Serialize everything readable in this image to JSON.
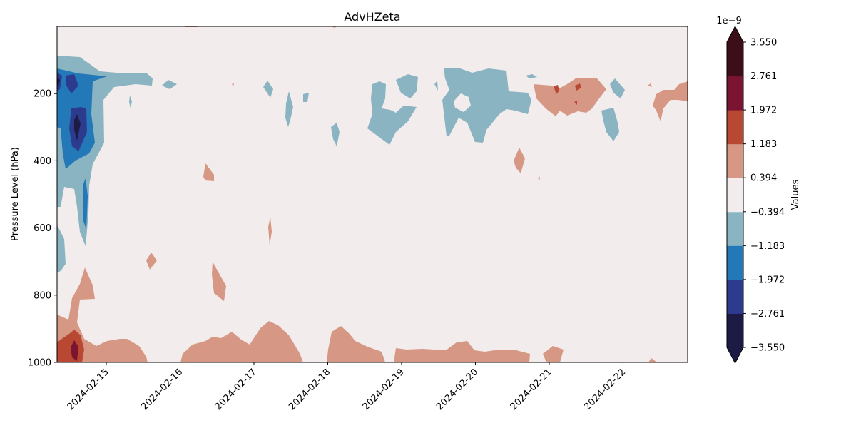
{
  "chart_data": {
    "type": "heatmap",
    "subtype": "filled-contour",
    "title": "AdvHZeta",
    "ylabel": "Pressure Level (hPa)",
    "xlabel": "",
    "x_ticks": [
      "2024-02-15",
      "2024-02-16",
      "2024-02-17",
      "2024-02-18",
      "2024-02-19",
      "2024-02-20",
      "2024-02-21",
      "2024-02-22"
    ],
    "x_range": [
      "2024-02-14T08:00",
      "2024-02-22T21:00"
    ],
    "y_ticks": [
      200,
      400,
      600,
      800,
      1000
    ],
    "y_range": [
      0,
      1000
    ],
    "y_inverted": true,
    "colorbar": {
      "label": "Values",
      "multiplier": "1e−9",
      "extend": "both",
      "levels": [
        -3.55,
        -2.761,
        -1.972,
        -1.183,
        -0.394,
        0.394,
        1.183,
        1.972,
        2.761,
        3.55
      ],
      "tick_labels": [
        "−3.550",
        "−2.761",
        "−1.972",
        "−1.183",
        "−0.394",
        "0.394",
        "1.183",
        "1.972",
        "2.761",
        "3.550"
      ],
      "colors": [
        "#1b1b45",
        "#2d3b8f",
        "#2378b8",
        "#8ab4c2",
        "#f2ecec",
        "#d69884",
        "#b84832",
        "#7a1430",
        "#3b0e18"
      ],
      "under_color": "#1b1b45",
      "over_color": "#3b0e18"
    },
    "regions": [
      {
        "level": 1.183,
        "date": "2024-02-14T12:00",
        "pressure": 960,
        "note": "strong positive core near surface"
      },
      {
        "level": -2.761,
        "date": "2024-02-14T14:00",
        "pressure": 310,
        "note": "strong negative core upper levels"
      },
      {
        "level": 0.394,
        "date": "2024-02-21T10:00",
        "pressure": 210,
        "note": "positive patch upper levels"
      },
      {
        "level": -0.394,
        "date": "2024-02-19T22:00",
        "pressure": 230,
        "note": "negative patch upper levels"
      }
    ]
  }
}
